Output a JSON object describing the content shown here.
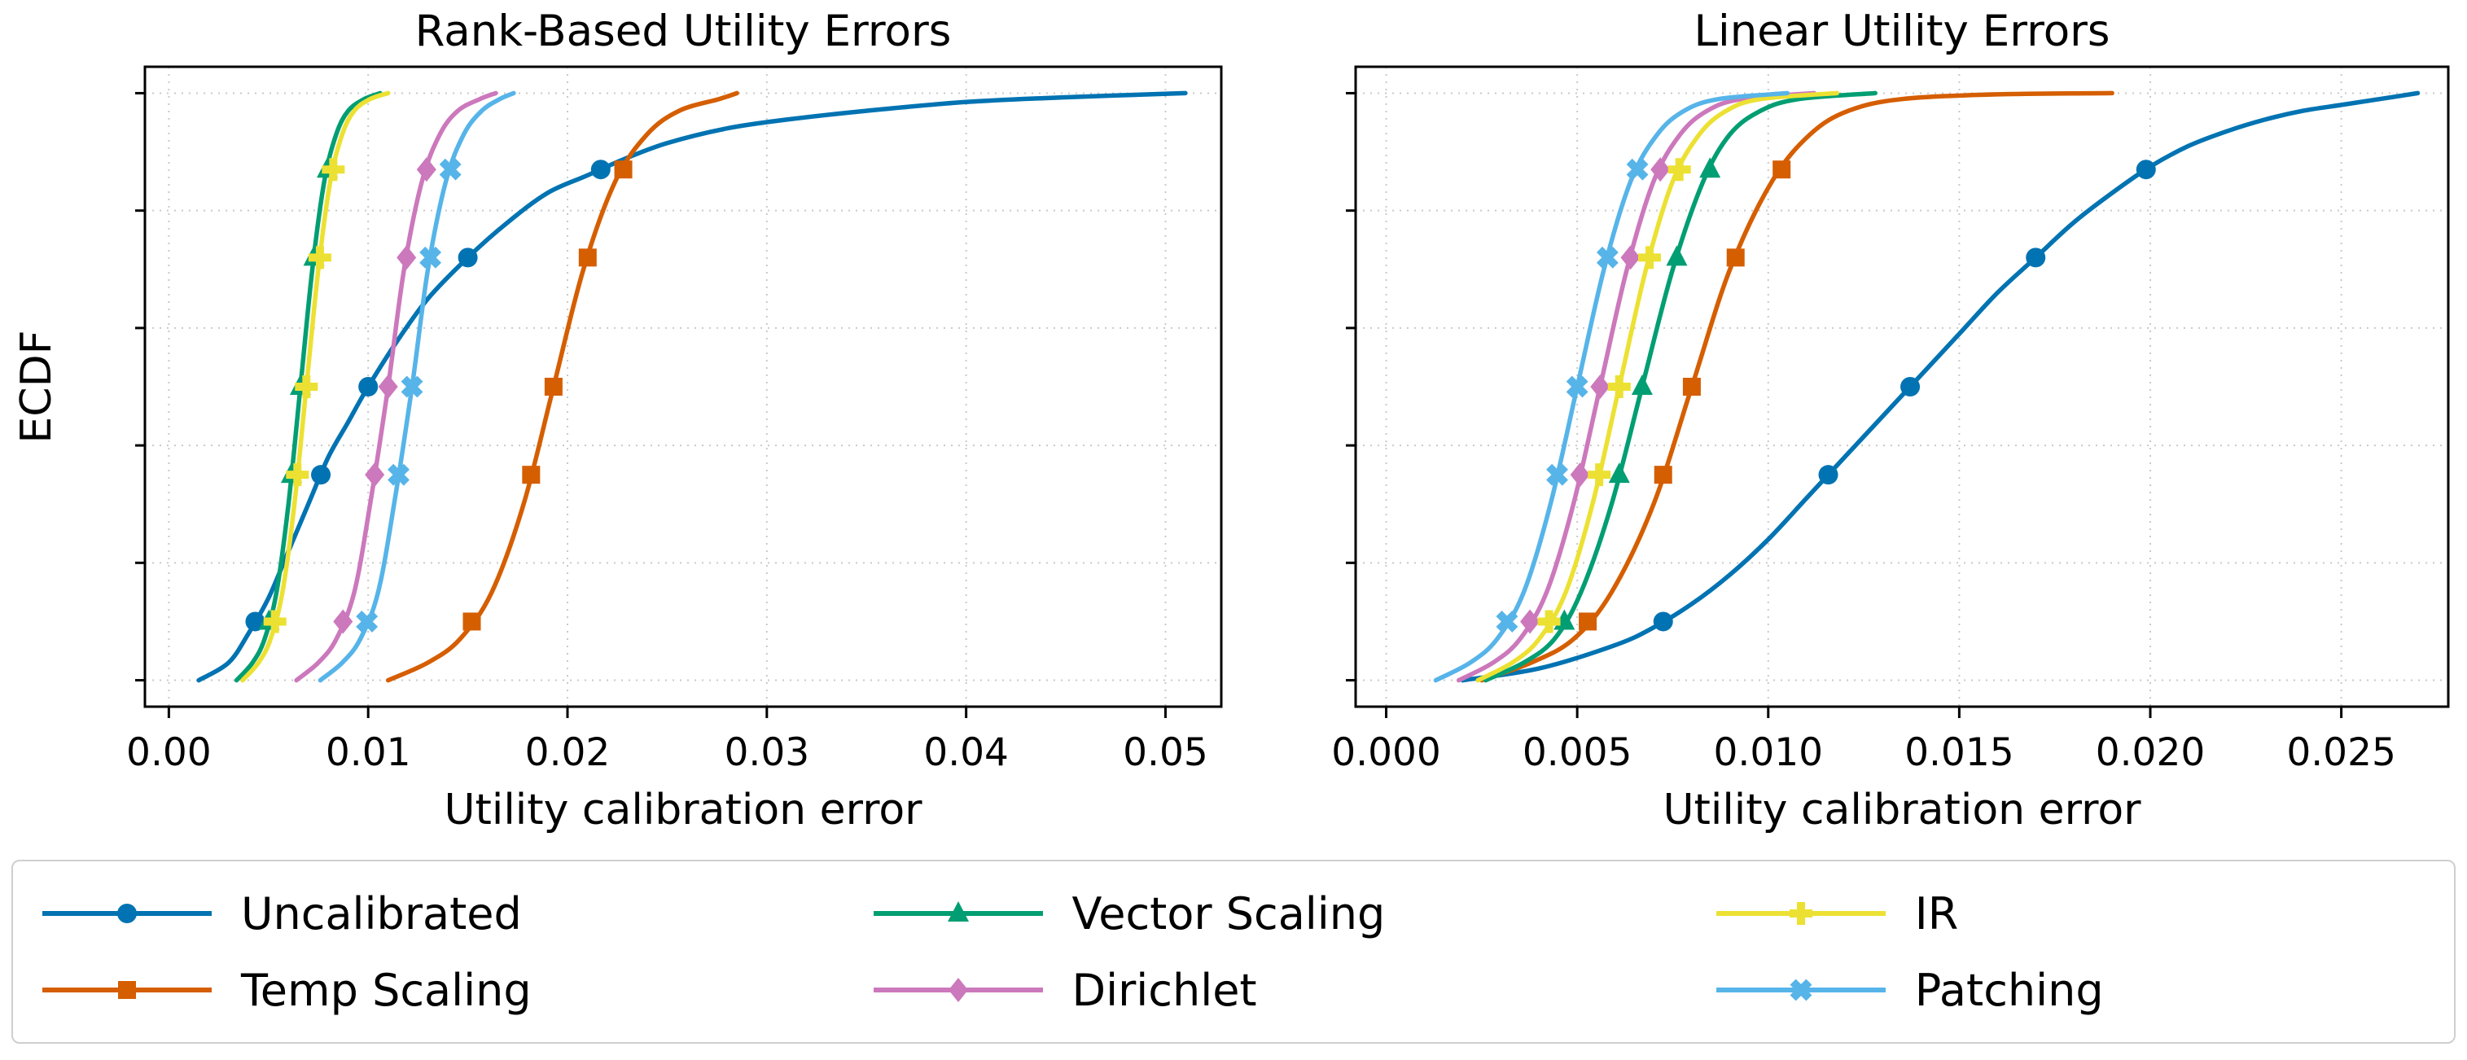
{
  "figure": {
    "background": "#ffffff"
  },
  "chart_data": [
    {
      "type": "line",
      "subtype": "ecdf",
      "title": "Rank-Based Utility Errors",
      "xlabel": "Utility calibration error",
      "ylabel": "ECDF",
      "xlim": [
        -0.0012,
        0.0528
      ],
      "ylim": [
        -0.045,
        1.045
      ],
      "xticks": [
        0.0,
        0.01,
        0.02,
        0.03,
        0.04,
        0.05
      ],
      "xtick_labels": [
        "0.00",
        "0.01",
        "0.02",
        "0.03",
        "0.04",
        "0.05"
      ],
      "yticks": [
        0,
        0.2,
        0.4,
        0.6,
        0.8,
        1.0
      ],
      "grid": true,
      "legend_position": "below-figure",
      "marker_ys": [
        0.1,
        0.35,
        0.5,
        0.72,
        0.87
      ],
      "series": [
        {
          "name": "Uncalibrated",
          "color": "#0173b2",
          "marker": "circle",
          "points": [
            [
              0.0015,
              0
            ],
            [
              0.003,
              0.03
            ],
            [
              0.004,
              0.08
            ],
            [
              0.005,
              0.14
            ],
            [
              0.006,
              0.22
            ],
            [
              0.007,
              0.3
            ],
            [
              0.008,
              0.38
            ],
            [
              0.009,
              0.44
            ],
            [
              0.01,
              0.5
            ],
            [
              0.0115,
              0.58
            ],
            [
              0.013,
              0.65
            ],
            [
              0.015,
              0.72
            ],
            [
              0.017,
              0.78
            ],
            [
              0.019,
              0.83
            ],
            [
              0.021,
              0.86
            ],
            [
              0.023,
              0.89
            ],
            [
              0.025,
              0.915
            ],
            [
              0.028,
              0.94
            ],
            [
              0.031,
              0.955
            ],
            [
              0.035,
              0.97
            ],
            [
              0.04,
              0.985
            ],
            [
              0.045,
              0.993
            ],
            [
              0.051,
              1.0
            ]
          ]
        },
        {
          "name": "Temp Scaling",
          "color": "#d55e00",
          "marker": "square",
          "points": [
            [
              0.011,
              0
            ],
            [
              0.013,
              0.03
            ],
            [
              0.0146,
              0.07
            ],
            [
              0.0162,
              0.15
            ],
            [
              0.0178,
              0.3
            ],
            [
              0.0193,
              0.5
            ],
            [
              0.0208,
              0.7
            ],
            [
              0.0224,
              0.85
            ],
            [
              0.024,
              0.93
            ],
            [
              0.0256,
              0.97
            ],
            [
              0.0276,
              0.99
            ],
            [
              0.0285,
              1.0
            ]
          ]
        },
        {
          "name": "Vector Scaling",
          "color": "#029e73",
          "marker": "triangle",
          "points": [
            [
              0.0034,
              0
            ],
            [
              0.0042,
              0.03
            ],
            [
              0.0048,
              0.07
            ],
            [
              0.0054,
              0.15
            ],
            [
              0.006,
              0.3
            ],
            [
              0.0066,
              0.5
            ],
            [
              0.0072,
              0.7
            ],
            [
              0.0078,
              0.85
            ],
            [
              0.0084,
              0.93
            ],
            [
              0.009,
              0.97
            ],
            [
              0.0098,
              0.99
            ],
            [
              0.0106,
              1.0
            ]
          ]
        },
        {
          "name": "Dirichlet",
          "color": "#cc78bc",
          "marker": "diamond",
          "points": [
            [
              0.0064,
              0
            ],
            [
              0.0075,
              0.03
            ],
            [
              0.0084,
              0.07
            ],
            [
              0.0093,
              0.15
            ],
            [
              0.0101,
              0.3
            ],
            [
              0.011,
              0.5
            ],
            [
              0.0118,
              0.7
            ],
            [
              0.0127,
              0.85
            ],
            [
              0.0136,
              0.93
            ],
            [
              0.0145,
              0.97
            ],
            [
              0.0156,
              0.99
            ],
            [
              0.0164,
              1.0
            ]
          ]
        },
        {
          "name": "IR",
          "color": "#ece133",
          "marker": "plus",
          "points": [
            [
              0.0037,
              0
            ],
            [
              0.0045,
              0.03
            ],
            [
              0.0051,
              0.07
            ],
            [
              0.0057,
              0.15
            ],
            [
              0.0063,
              0.3
            ],
            [
              0.0069,
              0.5
            ],
            [
              0.0075,
              0.7
            ],
            [
              0.0081,
              0.85
            ],
            [
              0.0087,
              0.93
            ],
            [
              0.0093,
              0.97
            ],
            [
              0.0101,
              0.99
            ],
            [
              0.011,
              1.0
            ]
          ]
        },
        {
          "name": "Patching",
          "color": "#56b4e9",
          "marker": "x",
          "points": [
            [
              0.0076,
              0
            ],
            [
              0.0087,
              0.03
            ],
            [
              0.0096,
              0.07
            ],
            [
              0.0105,
              0.15
            ],
            [
              0.0113,
              0.3
            ],
            [
              0.0122,
              0.5
            ],
            [
              0.013,
              0.7
            ],
            [
              0.0139,
              0.85
            ],
            [
              0.0148,
              0.93
            ],
            [
              0.0157,
              0.97
            ],
            [
              0.0166,
              0.99
            ],
            [
              0.0173,
              1.0
            ]
          ]
        }
      ]
    },
    {
      "type": "line",
      "subtype": "ecdf",
      "title": "Linear Utility Errors",
      "xlabel": "Utility calibration error",
      "ylabel": "",
      "xlim": [
        -0.0008,
        0.0278
      ],
      "ylim": [
        -0.045,
        1.045
      ],
      "xticks": [
        0.0,
        0.005,
        0.01,
        0.015,
        0.02,
        0.025
      ],
      "xtick_labels": [
        "0.000",
        "0.005",
        "0.010",
        "0.015",
        "0.020",
        "0.025"
      ],
      "yticks": [
        0,
        0.2,
        0.4,
        0.6,
        0.8,
        1.0
      ],
      "grid": true,
      "legend_position": "below-figure",
      "marker_ys": [
        0.1,
        0.35,
        0.5,
        0.72,
        0.87
      ],
      "series": [
        {
          "name": "Uncalibrated",
          "color": "#0173b2",
          "marker": "circle",
          "points": [
            [
              0.002,
              0
            ],
            [
              0.004,
              0.02
            ],
            [
              0.006,
              0.06
            ],
            [
              0.007,
              0.09
            ],
            [
              0.008,
              0.13
            ],
            [
              0.009,
              0.18
            ],
            [
              0.01,
              0.24
            ],
            [
              0.011,
              0.31
            ],
            [
              0.012,
              0.38
            ],
            [
              0.013,
              0.45
            ],
            [
              0.014,
              0.52
            ],
            [
              0.015,
              0.59
            ],
            [
              0.016,
              0.66
            ],
            [
              0.017,
              0.72
            ],
            [
              0.018,
              0.78
            ],
            [
              0.019,
              0.83
            ],
            [
              0.02,
              0.875
            ],
            [
              0.021,
              0.91
            ],
            [
              0.022,
              0.935
            ],
            [
              0.023,
              0.955
            ],
            [
              0.024,
              0.97
            ],
            [
              0.025,
              0.98
            ],
            [
              0.026,
              0.99
            ],
            [
              0.027,
              1.0
            ]
          ]
        },
        {
          "name": "Temp Scaling",
          "color": "#d55e00",
          "marker": "square",
          "points": [
            [
              0.0025,
              0
            ],
            [
              0.0038,
              0.03
            ],
            [
              0.0049,
              0.07
            ],
            [
              0.0059,
              0.15
            ],
            [
              0.007,
              0.3
            ],
            [
              0.008,
              0.5
            ],
            [
              0.009,
              0.7
            ],
            [
              0.0101,
              0.85
            ],
            [
              0.0111,
              0.93
            ],
            [
              0.0121,
              0.97
            ],
            [
              0.0135,
              0.99
            ],
            [
              0.016,
              0.998
            ],
            [
              0.019,
              1.0
            ]
          ]
        },
        {
          "name": "Vector Scaling",
          "color": "#029e73",
          "marker": "triangle",
          "points": [
            [
              0.0026,
              0
            ],
            [
              0.0036,
              0.03
            ],
            [
              0.0044,
              0.07
            ],
            [
              0.0051,
              0.15
            ],
            [
              0.0059,
              0.3
            ],
            [
              0.0067,
              0.5
            ],
            [
              0.0075,
              0.7
            ],
            [
              0.0083,
              0.85
            ],
            [
              0.009,
              0.93
            ],
            [
              0.0098,
              0.97
            ],
            [
              0.0108,
              0.99
            ],
            [
              0.0128,
              1.0
            ]
          ]
        },
        {
          "name": "Dirichlet",
          "color": "#cc78bc",
          "marker": "diamond",
          "points": [
            [
              0.0019,
              0
            ],
            [
              0.0028,
              0.03
            ],
            [
              0.0035,
              0.07
            ],
            [
              0.0042,
              0.15
            ],
            [
              0.0049,
              0.3
            ],
            [
              0.0056,
              0.5
            ],
            [
              0.0063,
              0.7
            ],
            [
              0.007,
              0.85
            ],
            [
              0.0077,
              0.93
            ],
            [
              0.0084,
              0.97
            ],
            [
              0.0093,
              0.99
            ],
            [
              0.0112,
              1.0
            ]
          ]
        },
        {
          "name": "IR",
          "color": "#ece133",
          "marker": "plus",
          "points": [
            [
              0.0024,
              0
            ],
            [
              0.0033,
              0.03
            ],
            [
              0.004,
              0.07
            ],
            [
              0.0047,
              0.15
            ],
            [
              0.0054,
              0.3
            ],
            [
              0.0061,
              0.5
            ],
            [
              0.0068,
              0.7
            ],
            [
              0.0075,
              0.85
            ],
            [
              0.0082,
              0.93
            ],
            [
              0.0089,
              0.97
            ],
            [
              0.0098,
              0.99
            ],
            [
              0.0118,
              1.0
            ]
          ]
        },
        {
          "name": "Patching",
          "color": "#56b4e9",
          "marker": "x",
          "points": [
            [
              0.0013,
              0
            ],
            [
              0.0022,
              0.03
            ],
            [
              0.0029,
              0.07
            ],
            [
              0.0036,
              0.15
            ],
            [
              0.0043,
              0.3
            ],
            [
              0.005,
              0.5
            ],
            [
              0.0057,
              0.7
            ],
            [
              0.0064,
              0.85
            ],
            [
              0.0071,
              0.93
            ],
            [
              0.0078,
              0.97
            ],
            [
              0.0087,
              0.99
            ],
            [
              0.0105,
              1.0
            ]
          ]
        }
      ]
    }
  ],
  "legend": {
    "entries": [
      {
        "label": "Uncalibrated",
        "color": "#0173b2",
        "marker": "circle"
      },
      {
        "label": "Temp Scaling",
        "color": "#d55e00",
        "marker": "square"
      },
      {
        "label": "Vector Scaling",
        "color": "#029e73",
        "marker": "triangle"
      },
      {
        "label": "Dirichlet",
        "color": "#cc78bc",
        "marker": "diamond"
      },
      {
        "label": "IR",
        "color": "#ece133",
        "marker": "plus"
      },
      {
        "label": "Patching",
        "color": "#56b4e9",
        "marker": "x"
      }
    ]
  }
}
